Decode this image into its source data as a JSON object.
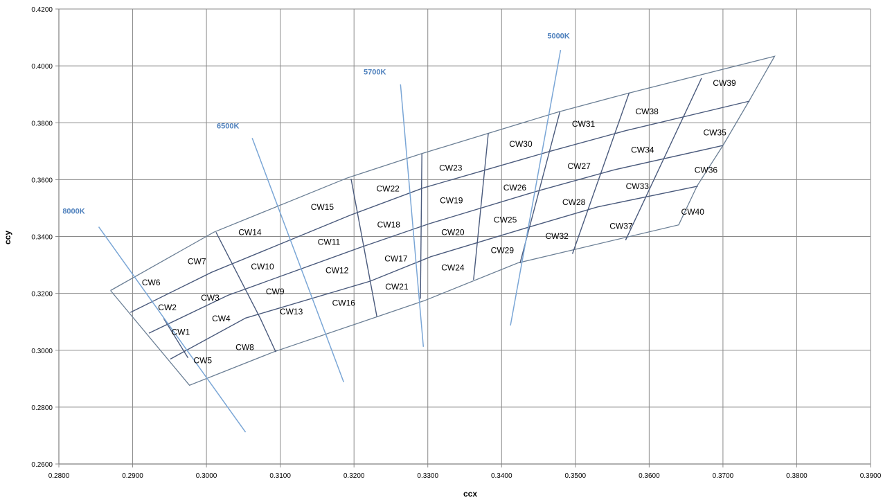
{
  "chart_data": {
    "type": "scatter",
    "title": "",
    "xlabel": "ccx",
    "ylabel": "ccy",
    "xlim": [
      0.28,
      0.39
    ],
    "ylim": [
      0.26,
      0.42
    ],
    "x_ticks": [
      "0.2800",
      "0.2900",
      "0.3000",
      "0.3100",
      "0.3200",
      "0.3300",
      "0.3400",
      "0.3500",
      "0.3600",
      "0.3700",
      "0.3800",
      "0.3900"
    ],
    "y_ticks": [
      "0.2600",
      "0.2800",
      "0.3000",
      "0.3200",
      "0.3400",
      "0.3600",
      "0.3800",
      "0.4000",
      "0.4200"
    ],
    "grid": true,
    "colors": {
      "grid": "#8a8a8a",
      "outline": "#6b7f95",
      "inner": "#4a5a7c",
      "cct": "#7aa6d6",
      "cct_label": "#4f81bd"
    },
    "outline": [
      [
        0.287,
        0.321
      ],
      [
        0.301,
        0.3415
      ],
      [
        0.319,
        0.3605
      ],
      [
        0.329,
        0.369
      ],
      [
        0.3477,
        0.3838
      ],
      [
        0.3575,
        0.3906
      ],
      [
        0.377,
        0.4034
      ],
      [
        0.3735,
        0.3875
      ],
      [
        0.37,
        0.372
      ],
      [
        0.3665,
        0.3578
      ],
      [
        0.364,
        0.3441
      ],
      [
        0.3422,
        0.3307
      ],
      [
        0.3295,
        0.3174
      ],
      [
        0.3092,
        0.2995
      ],
      [
        0.2977,
        0.2877
      ],
      [
        0.287,
        0.321
      ]
    ],
    "inner_lines": [
      [
        [
          0.2897,
          0.3133
        ],
        [
          0.3007,
          0.3274
        ],
        [
          0.3194,
          0.3474
        ],
        [
          0.3294,
          0.3571
        ],
        [
          0.3465,
          0.3699
        ],
        [
          0.3568,
          0.3772
        ],
        [
          0.3736,
          0.3876
        ]
      ],
      [
        [
          0.2922,
          0.306
        ],
        [
          0.3029,
          0.3193
        ],
        [
          0.3207,
          0.336
        ],
        [
          0.3302,
          0.3445
        ],
        [
          0.345,
          0.3561
        ],
        [
          0.3552,
          0.3634
        ],
        [
          0.37,
          0.372
        ]
      ],
      [
        [
          0.2951,
          0.2969
        ],
        [
          0.3053,
          0.3113
        ],
        [
          0.3222,
          0.3243
        ],
        [
          0.3304,
          0.3329
        ],
        [
          0.3437,
          0.3433
        ],
        [
          0.353,
          0.3504
        ],
        [
          0.3666,
          0.3577
        ]
      ],
      [
        [
          0.2942,
          0.3112
        ],
        [
          0.2975,
          0.2973
        ]
      ],
      [
        [
          0.3013,
          0.3415
        ],
        [
          0.3073,
          0.3112
        ],
        [
          0.3094,
          0.2994
        ]
      ],
      [
        [
          0.3196,
          0.3603
        ],
        [
          0.3231,
          0.3118
        ]
      ],
      [
        [
          0.3292,
          0.369
        ],
        [
          0.329,
          0.3181
        ]
      ],
      [
        [
          0.3382,
          0.3763
        ],
        [
          0.3362,
          0.3248
        ]
      ],
      [
        [
          0.3479,
          0.3838
        ],
        [
          0.3425,
          0.3306
        ]
      ],
      [
        [
          0.3573,
          0.3906
        ],
        [
          0.3496,
          0.3339
        ]
      ],
      [
        [
          0.3671,
          0.3957
        ],
        [
          0.3568,
          0.3387
        ]
      ]
    ],
    "cells": [
      {
        "label": "CW1",
        "x": 0.2965,
        "y": 0.3064
      },
      {
        "label": "CW2",
        "x": 0.2947,
        "y": 0.315
      },
      {
        "label": "CW3",
        "x": 0.3005,
        "y": 0.3185
      },
      {
        "label": "CW4",
        "x": 0.302,
        "y": 0.3112
      },
      {
        "label": "CW5",
        "x": 0.2995,
        "y": 0.2964
      },
      {
        "label": "CW6",
        "x": 0.2925,
        "y": 0.3238
      },
      {
        "label": "CW7",
        "x": 0.2987,
        "y": 0.3312
      },
      {
        "label": "CW8",
        "x": 0.3052,
        "y": 0.301
      },
      {
        "label": "CW9",
        "x": 0.3093,
        "y": 0.3206
      },
      {
        "label": "CW10",
        "x": 0.3076,
        "y": 0.3294
      },
      {
        "label": "CW11",
        "x": 0.3166,
        "y": 0.3381
      },
      {
        "label": "CW12",
        "x": 0.3177,
        "y": 0.3281
      },
      {
        "label": "CW13",
        "x": 0.3115,
        "y": 0.3136
      },
      {
        "label": "CW14",
        "x": 0.3059,
        "y": 0.3415
      },
      {
        "label": "CW15",
        "x": 0.3157,
        "y": 0.3503
      },
      {
        "label": "CW16",
        "x": 0.3186,
        "y": 0.3166
      },
      {
        "label": "CW17",
        "x": 0.3257,
        "y": 0.3322
      },
      {
        "label": "CW18",
        "x": 0.3247,
        "y": 0.3441
      },
      {
        "label": "CW19",
        "x": 0.3332,
        "y": 0.3527
      },
      {
        "label": "CW20",
        "x": 0.3334,
        "y": 0.3415
      },
      {
        "label": "CW21",
        "x": 0.3258,
        "y": 0.3224
      },
      {
        "label": "CW22",
        "x": 0.3246,
        "y": 0.3568
      },
      {
        "label": "CW23",
        "x": 0.3331,
        "y": 0.3641
      },
      {
        "label": "CW24",
        "x": 0.3334,
        "y": 0.3291
      },
      {
        "label": "CW25",
        "x": 0.3405,
        "y": 0.3458
      },
      {
        "label": "CW26",
        "x": 0.3418,
        "y": 0.3572
      },
      {
        "label": "CW27",
        "x": 0.3505,
        "y": 0.3647
      },
      {
        "label": "CW28",
        "x": 0.3498,
        "y": 0.352
      },
      {
        "label": "CW29",
        "x": 0.3401,
        "y": 0.3351
      },
      {
        "label": "CW30",
        "x": 0.3426,
        "y": 0.3725
      },
      {
        "label": "CW31",
        "x": 0.3511,
        "y": 0.3796
      },
      {
        "label": "CW32",
        "x": 0.3475,
        "y": 0.3401
      },
      {
        "label": "CW33",
        "x": 0.3584,
        "y": 0.3577
      },
      {
        "label": "CW34",
        "x": 0.3591,
        "y": 0.3705
      },
      {
        "label": "CW35",
        "x": 0.3689,
        "y": 0.3765
      },
      {
        "label": "CW36",
        "x": 0.3677,
        "y": 0.3634
      },
      {
        "label": "CW37",
        "x": 0.3562,
        "y": 0.3436
      },
      {
        "label": "CW38",
        "x": 0.3597,
        "y": 0.3839
      },
      {
        "label": "CW39",
        "x": 0.3702,
        "y": 0.3939
      },
      {
        "label": "CW40",
        "x": 0.3659,
        "y": 0.3487
      }
    ],
    "cct_lines": [
      {
        "label": "8000K",
        "p1": [
          0.2854,
          0.3434
        ],
        "p2": [
          0.3053,
          0.2712
        ],
        "label_x": 0.2805,
        "label_y": 0.348
      },
      {
        "label": "6500K",
        "p1": [
          0.3062,
          0.3746
        ],
        "p2": [
          0.3186,
          0.2888
        ],
        "label_x": 0.3014,
        "label_y": 0.378
      },
      {
        "label": "5700K",
        "p1": [
          0.3263,
          0.3935
        ],
        "p2": [
          0.3294,
          0.3012
        ],
        "label_x": 0.3213,
        "label_y": 0.397
      },
      {
        "label": "5000K",
        "p1": [
          0.348,
          0.4056
        ],
        "p2": [
          0.3412,
          0.3087
        ],
        "label_x": 0.3462,
        "label_y": 0.4096
      }
    ]
  }
}
